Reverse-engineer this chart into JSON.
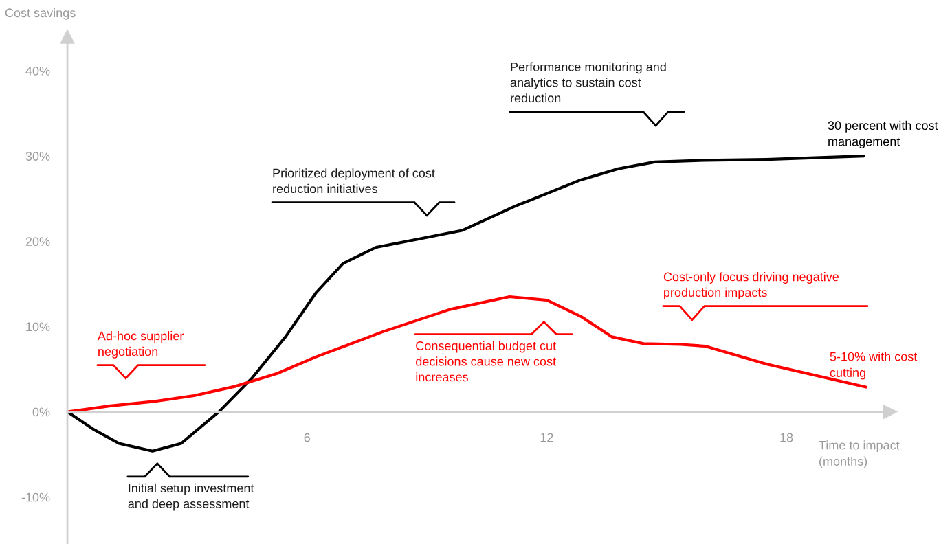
{
  "chart_data": {
    "type": "line",
    "ylabel": "Cost savings",
    "xlabel": "Time to impact (months)",
    "xlim": [
      0,
      20.6
    ],
    "xticks": [
      6,
      12,
      18
    ],
    "ylim": [
      -15.5,
      44
    ],
    "yticks": [
      {
        "value": -10,
        "label": "-10%"
      },
      {
        "value": 0,
        "label": "0%"
      },
      {
        "value": 10,
        "label": "10%"
      },
      {
        "value": 20,
        "label": "20%"
      },
      {
        "value": 30,
        "label": "30%"
      },
      {
        "value": 40,
        "label": "40%"
      }
    ],
    "grid": false,
    "legend": false,
    "series": [
      {
        "name": "30 percent with cost management",
        "color": "#000000",
        "x": [
          0,
          0.67,
          1.29,
          2.13,
          2.85,
          3.79,
          4.63,
          5.46,
          6.23,
          6.9,
          7.73,
          8.73,
          9.9,
          11.2,
          12.85,
          13.79,
          14.7,
          15.97,
          17.5,
          19.94
        ],
        "values": [
          0,
          -2.1,
          -3.7,
          -4.6,
          -3.7,
          0,
          4.0,
          8.8,
          14.0,
          17.4,
          19.3,
          20.2,
          21.3,
          24.1,
          27.2,
          28.5,
          29.3,
          29.5,
          29.6,
          30.0
        ]
      },
      {
        "name": "5-10% with cost cutting",
        "color": "#ff0000",
        "x": [
          0,
          1.08,
          2.13,
          3.17,
          4.21,
          5.25,
          6.2,
          7.9,
          9.57,
          11.07,
          12.0,
          12.85,
          13.63,
          14.42,
          15.36,
          15.97,
          17.5,
          19.99
        ],
        "values": [
          0,
          0.7,
          1.2,
          1.9,
          3.0,
          4.5,
          6.4,
          9.4,
          12.0,
          13.5,
          13.1,
          11.2,
          8.8,
          8.0,
          7.9,
          7.7,
          5.6,
          2.9
        ]
      }
    ],
    "annotations": [
      "Initial setup investment and deep assessment",
      "Ad-hoc supplier negotiation",
      "Prioritized deployment of cost reduction initiatives",
      "Consequential budget cut decisions cause new cost increases",
      "Performance monitoring and analytics to sustain cost reduction",
      "Cost-only focus driving negative production impacts"
    ]
  }
}
